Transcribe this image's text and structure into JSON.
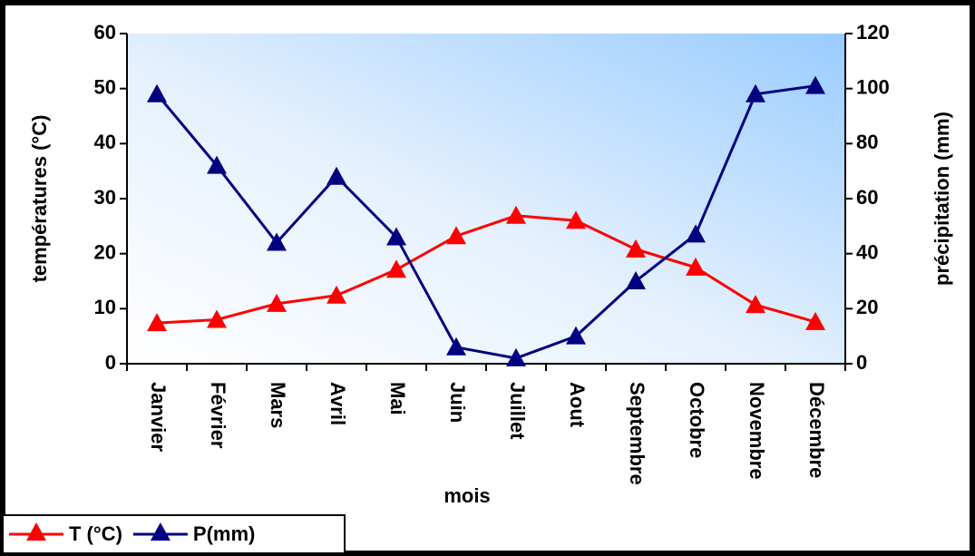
{
  "chart_data": {
    "type": "line",
    "x_label": "mois",
    "y_label": "températures (°C)",
    "y2_label": "précipitation (mm)",
    "categories": [
      "Janvier",
      "Février",
      "Mars",
      "Avril",
      "Mai",
      "Juin",
      "Juillet",
      "Aout",
      "Septembre",
      "Octobre",
      "Novembre",
      "Décembre"
    ],
    "series": [
      {
        "name": "T (°C)",
        "color": "#ff0000",
        "values": [
          7.4,
          8,
          10.9,
          12.4,
          17.1,
          23.2,
          26.9,
          26,
          20.8,
          17.5,
          10.7,
          7.6
        ]
      },
      {
        "name": "P(mm)",
        "color": "#000080",
        "axis": "y2",
        "values": [
          98,
          72,
          44,
          68,
          46,
          6,
          2,
          10,
          30,
          47,
          98,
          101
        ]
      }
    ],
    "ylim": [
      0,
      60
    ],
    "yticks": [
      0,
      10,
      20,
      30,
      40,
      50,
      60
    ],
    "y2lim": [
      0,
      120
    ],
    "y2ticks": [
      0,
      20,
      40,
      60,
      80,
      100,
      120
    ],
    "legend": "bottom-left"
  }
}
